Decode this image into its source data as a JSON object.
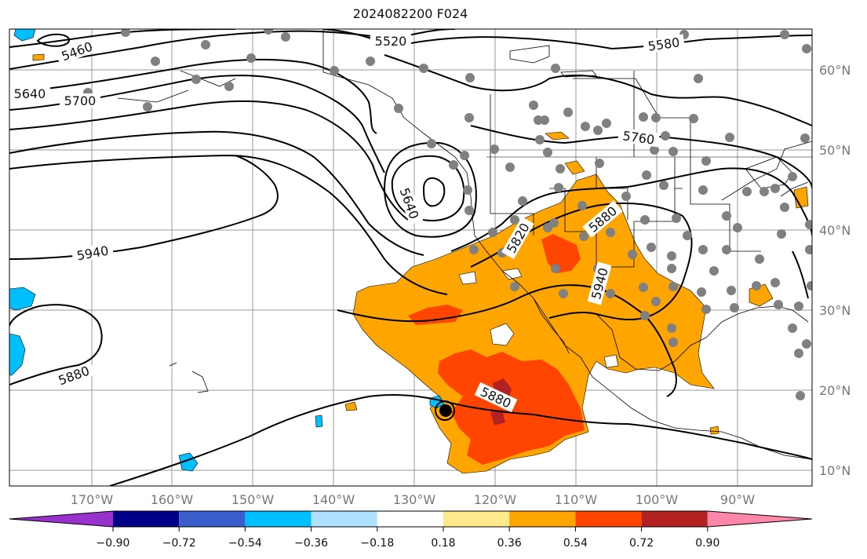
{
  "title": "2024082200 F024",
  "map": {
    "type": "forecast-map",
    "lat_ticks": [
      "60°N",
      "50°N",
      "40°N",
      "30°N",
      "20°N",
      "10°N"
    ],
    "lon_ticks": [
      "170°W",
      "160°W",
      "150°W",
      "140°W",
      "130°W",
      "120°W",
      "110°W",
      "100°W",
      "90°W"
    ],
    "contour_labels": [
      "5460",
      "5520",
      "5580",
      "5640",
      "5700",
      "5760",
      "5640",
      "5820",
      "5880",
      "5940",
      "5940",
      "5880",
      "5880"
    ],
    "grid": true,
    "colors": {
      "orange": "#ffa500",
      "red_orange": "#ff4500",
      "dark_red": "#b22222",
      "cyan": "#00bfff",
      "station_dot": "#808080",
      "contour": "#000000"
    }
  },
  "colorbar": {
    "ticks": [
      "−0.90",
      "−0.72",
      "−0.54",
      "−0.36",
      "−0.18",
      "0.18",
      "0.36",
      "0.54",
      "0.72",
      "0.90"
    ],
    "colors": [
      "#9932cc",
      "#00008b",
      "#3a5fcd",
      "#00bfff",
      "#b0e0ff",
      "#ffffff",
      "#ffe98a",
      "#ffa500",
      "#ff4500",
      "#b22222",
      "#ff88aa"
    ],
    "extend": "both"
  }
}
